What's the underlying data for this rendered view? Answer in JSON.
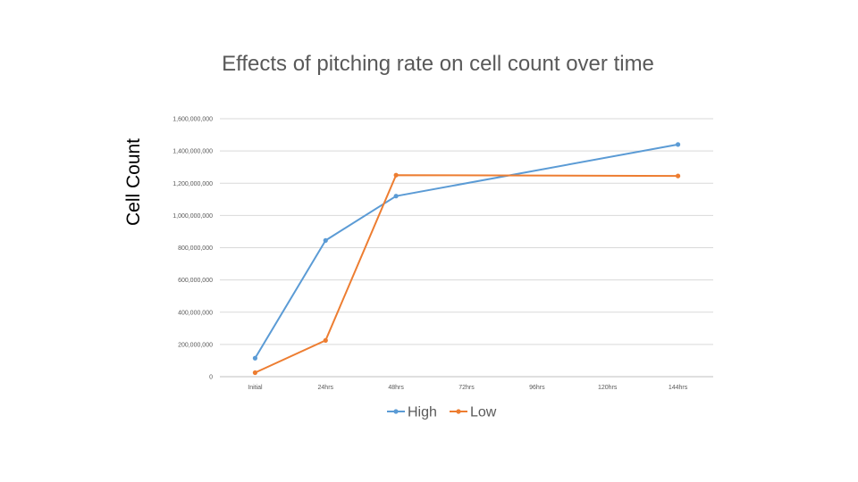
{
  "chart_data": {
    "type": "line",
    "title": "Effects of pitching rate on cell count over time",
    "ylabel": "Cell Count",
    "xlabel": "",
    "categories": [
      "Initial",
      "24hrs",
      "48hrs",
      "72hrs",
      "96hrs",
      "120hrs",
      "144hrs"
    ],
    "ylim": [
      0,
      1600000000
    ],
    "yticks": [
      0,
      200000000,
      400000000,
      600000000,
      800000000,
      1000000000,
      1200000000,
      1400000000,
      1600000000
    ],
    "ytick_labels": [
      "0",
      "200,000,000",
      "400,000,000",
      "600,000,000",
      "800,000,000",
      "1,000,000,000",
      "1,200,000,000",
      "1,400,000,000",
      "1,600,000,000"
    ],
    "grid": true,
    "legend_position": "bottom",
    "series": [
      {
        "name": "High",
        "color": "#5B9BD5",
        "points": [
          {
            "x": "Initial",
            "y": 115000000
          },
          {
            "x": "24hrs",
            "y": 845000000
          },
          {
            "x": "48hrs",
            "y": 1120000000
          },
          {
            "x": "144hrs",
            "y": 1440000000
          }
        ]
      },
      {
        "name": "Low",
        "color": "#ED7D31",
        "points": [
          {
            "x": "Initial",
            "y": 25000000
          },
          {
            "x": "24hrs",
            "y": 225000000
          },
          {
            "x": "48hrs",
            "y": 1250000000
          },
          {
            "x": "144hrs",
            "y": 1245000000
          }
        ]
      }
    ]
  }
}
